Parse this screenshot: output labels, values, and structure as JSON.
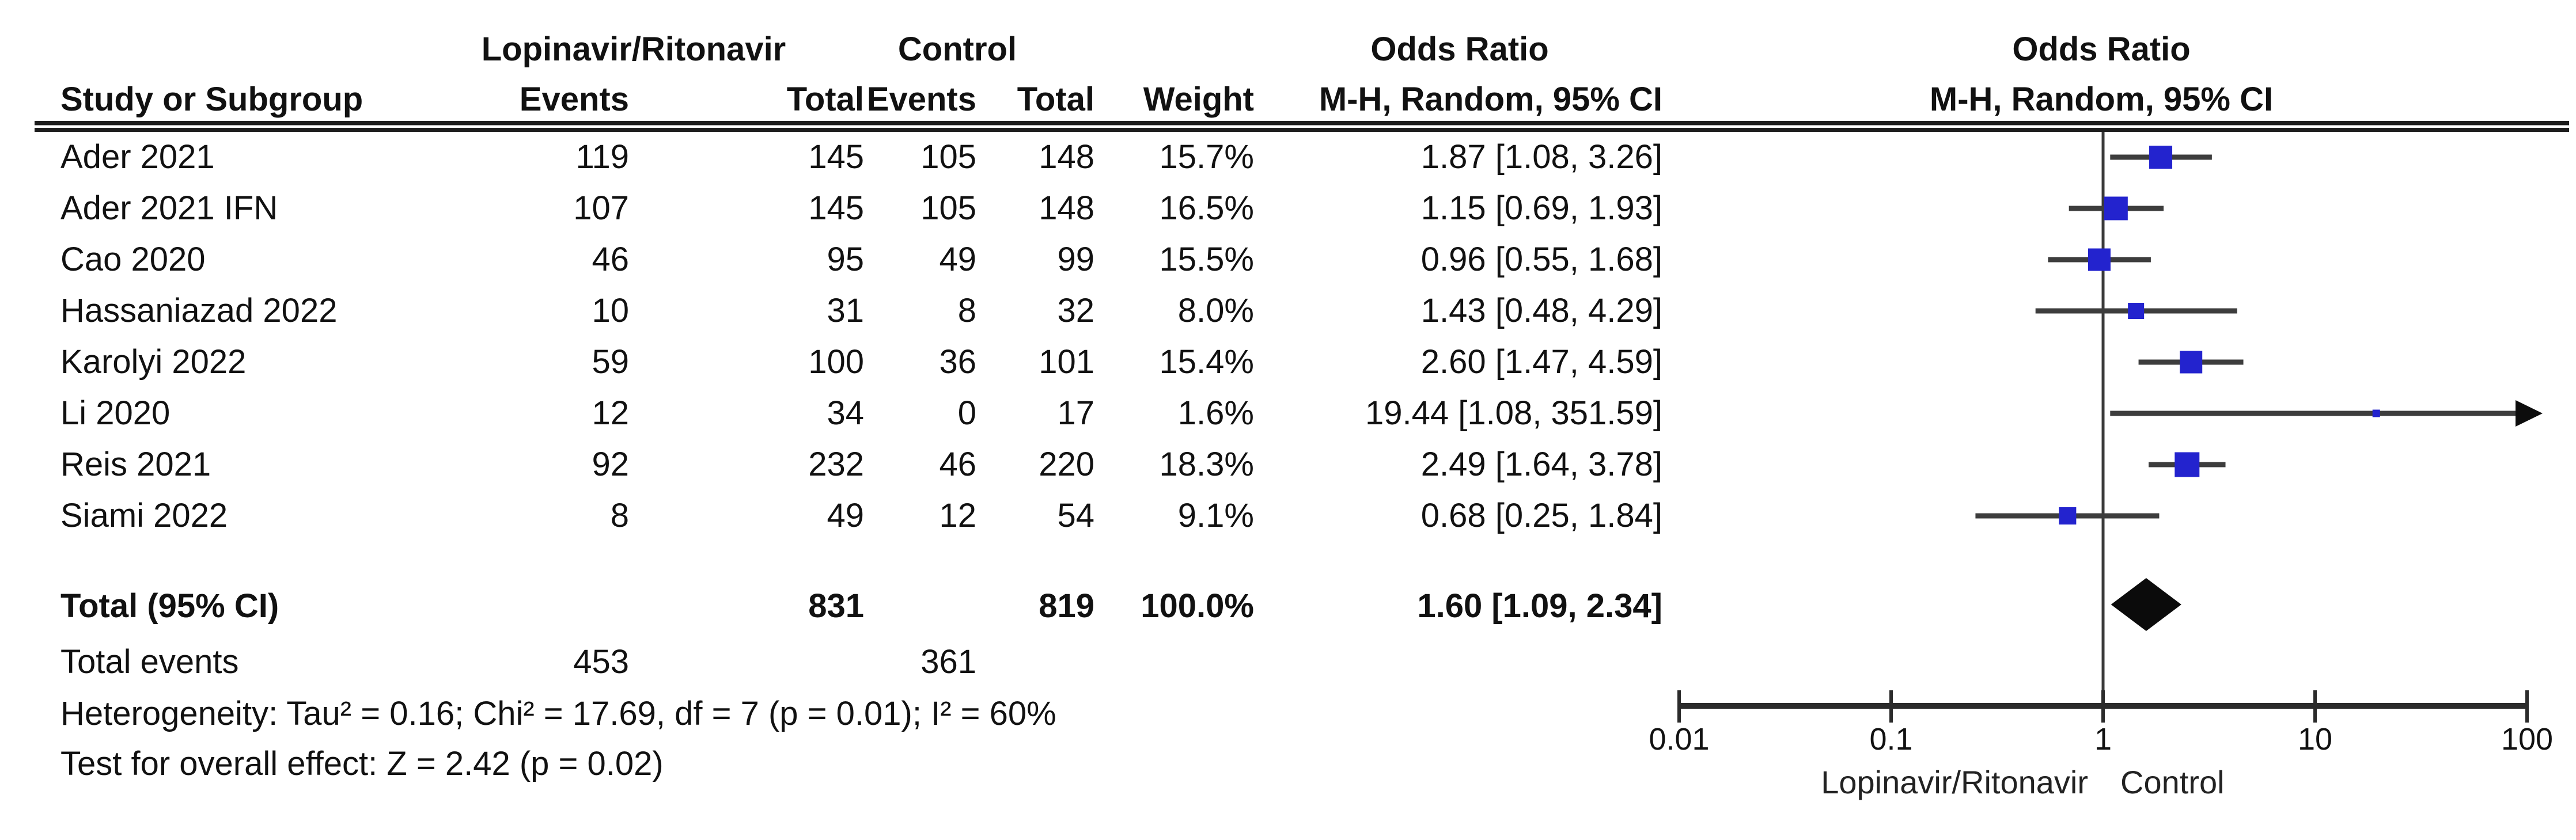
{
  "figure": {
    "headers": {
      "group1": "Lopinavir/Ritonavir",
      "group2": "Control",
      "study_col": "Study or Subgroup",
      "events_col": "Events",
      "total_col": "Total",
      "events2_col": "Events",
      "total2_col": "Total",
      "weight_col": "Weight",
      "or_col_line1": "Odds Ratio",
      "or_col_line2": "M-H, Random, 95% CI",
      "plot_col_line1": "Odds Ratio",
      "plot_col_line2": "M-H, Random, 95% CI"
    },
    "totals": {
      "label": "Total (95% CI)",
      "total1": "831",
      "total2": "819",
      "weight": "100.0%",
      "or_text": "1.60 [1.09, 2.34]"
    },
    "total_events": {
      "label": "Total events",
      "events1": "453",
      "events2": "361"
    },
    "heterogeneity": "Heterogeneity: Tau² = 0.16; Chi² = 17.69, df = 7 (p = 0.01); I² = 60%",
    "overall_effect": "Test for overall effect: Z = 2.42 (p = 0.02)"
  },
  "colors": {
    "marker": "#2323CE",
    "ci_line": "#3d3d3d",
    "diamond": "#0b0b0b",
    "axis": "#2b2b2b",
    "vline": "#3a3a3a",
    "text": "#111111"
  },
  "chart_data": {
    "type": "scatter",
    "subtype": "forest-plot",
    "title": "Odds Ratio, M-H, Random, 95% CI",
    "effect_measure": "Odds Ratio (Mantel-Haenszel, Random effects, 95% CI)",
    "x_scale": "log10",
    "x_ticks": [
      0.01,
      0.1,
      1,
      10,
      100
    ],
    "xlim": [
      0.01,
      100
    ],
    "axis_label_left": "Lopinavir/Ritonavir",
    "axis_label_right": "Control",
    "studies": [
      {
        "name": "Ader 2021",
        "events_treat": 119,
        "total_treat": 145,
        "events_ctrl": 105,
        "total_ctrl": 148,
        "weight_pct": 15.7,
        "weight_text": "15.7%",
        "or": 1.87,
        "ci_low": 1.08,
        "ci_high": 3.26,
        "or_text": "1.87 [1.08, 3.26]"
      },
      {
        "name": "Ader 2021 IFN",
        "events_treat": 107,
        "total_treat": 145,
        "events_ctrl": 105,
        "total_ctrl": 148,
        "weight_pct": 16.5,
        "weight_text": "16.5%",
        "or": 1.15,
        "ci_low": 0.69,
        "ci_high": 1.93,
        "or_text": "1.15 [0.69, 1.93]"
      },
      {
        "name": "Cao 2020",
        "events_treat": 46,
        "total_treat": 95,
        "events_ctrl": 49,
        "total_ctrl": 99,
        "weight_pct": 15.5,
        "weight_text": "15.5%",
        "or": 0.96,
        "ci_low": 0.55,
        "ci_high": 1.68,
        "or_text": "0.96 [0.55, 1.68]"
      },
      {
        "name": "Hassaniazad 2022",
        "events_treat": 10,
        "total_treat": 31,
        "events_ctrl": 8,
        "total_ctrl": 32,
        "weight_pct": 8.0,
        "weight_text": "8.0%",
        "or": 1.43,
        "ci_low": 0.48,
        "ci_high": 4.29,
        "or_text": "1.43 [0.48, 4.29]"
      },
      {
        "name": "Karolyi 2022",
        "events_treat": 59,
        "total_treat": 100,
        "events_ctrl": 36,
        "total_ctrl": 101,
        "weight_pct": 15.4,
        "weight_text": "15.4%",
        "or": 2.6,
        "ci_low": 1.47,
        "ci_high": 4.59,
        "or_text": "2.60 [1.47, 4.59]"
      },
      {
        "name": "Li 2020",
        "events_treat": 12,
        "total_treat": 34,
        "events_ctrl": 0,
        "total_ctrl": 17,
        "weight_pct": 1.6,
        "weight_text": "1.6%",
        "or": 19.44,
        "ci_low": 1.08,
        "ci_high": 351.59,
        "or_text": "19.44 [1.08, 351.59]"
      },
      {
        "name": "Reis 2021",
        "events_treat": 92,
        "total_treat": 232,
        "events_ctrl": 46,
        "total_ctrl": 220,
        "weight_pct": 18.3,
        "weight_text": "18.3%",
        "or": 2.49,
        "ci_low": 1.64,
        "ci_high": 3.78,
        "or_text": "2.49 [1.64, 3.78]"
      },
      {
        "name": "Siami 2022",
        "events_treat": 8,
        "total_treat": 49,
        "events_ctrl": 12,
        "total_ctrl": 54,
        "weight_pct": 9.1,
        "weight_text": "9.1%",
        "or": 0.68,
        "ci_low": 0.25,
        "ci_high": 1.84,
        "or_text": "0.68 [0.25, 1.84]"
      }
    ],
    "overall": {
      "name": "Total (95% CI)",
      "or": 1.6,
      "ci_low": 1.09,
      "ci_high": 2.34,
      "weight_pct": 100.0,
      "or_text": "1.60 [1.09, 2.34]"
    }
  }
}
